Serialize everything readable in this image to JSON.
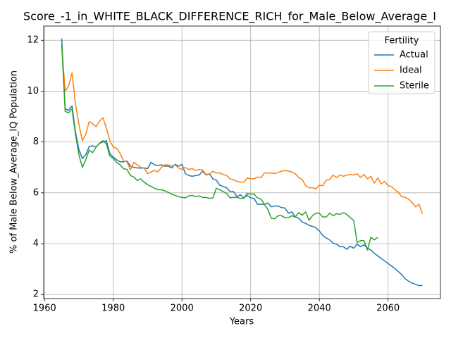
{
  "chart_data": {
    "type": "line",
    "title": "Score_-1_in_WHITE_BLACK_DIFFERENCE_RICH_for_Male_Below_Average_I",
    "xlabel": "Years",
    "ylabel": "% of Male Below_Average_IQ Population",
    "x": [
      1965,
      1966,
      1967,
      1968,
      1969,
      1970,
      1971,
      1972,
      1973,
      1974,
      1975,
      1976,
      1977,
      1978,
      1979,
      1980,
      1981,
      1982,
      1983,
      1984,
      1985,
      1986,
      1987,
      1988,
      1989,
      1990,
      1991,
      1992,
      1993,
      1994,
      1995,
      1996,
      1997,
      1998,
      1999,
      2000,
      2001,
      2002,
      2003,
      2004,
      2005,
      2006,
      2007,
      2008,
      2009,
      2010,
      2011,
      2012,
      2013,
      2014,
      2015,
      2016,
      2017,
      2018,
      2019,
      2020,
      2021,
      2022,
      2023,
      2024,
      2025,
      2026,
      2027,
      2028,
      2029,
      2030,
      2031,
      2032,
      2033,
      2034,
      2035,
      2036,
      2037,
      2038,
      2039,
      2040,
      2041,
      2042,
      2043,
      2044,
      2045,
      2046,
      2047,
      2048,
      2049,
      2050,
      2051,
      2052,
      2053,
      2054,
      2055,
      2056,
      2057,
      2058,
      2059,
      2060,
      2061,
      2062,
      2063,
      2064,
      2065,
      2066,
      2067,
      2068,
      2069,
      2070
    ],
    "series": [
      {
        "name": "Actual",
        "color": "#1f77b4",
        "values": [
          12.07,
          9.3,
          9.25,
          9.42,
          8.4,
          7.7,
          7.35,
          7.5,
          7.82,
          7.85,
          7.8,
          7.95,
          8.0,
          8.05,
          7.55,
          7.4,
          7.3,
          7.22,
          7.22,
          7.25,
          7.05,
          7.0,
          6.98,
          6.97,
          6.98,
          6.95,
          7.2,
          7.1,
          7.08,
          7.1,
          7.05,
          7.05,
          6.98,
          7.12,
          7.05,
          7.12,
          6.75,
          6.68,
          6.65,
          6.68,
          6.7,
          6.85,
          6.7,
          6.75,
          6.55,
          6.5,
          6.3,
          6.25,
          6.2,
          6.05,
          6.05,
          5.85,
          5.92,
          5.8,
          5.9,
          5.8,
          5.78,
          5.55,
          5.55,
          5.55,
          5.6,
          5.45,
          5.48,
          5.48,
          5.42,
          5.4,
          5.2,
          5.25,
          5.05,
          5.0,
          4.85,
          4.8,
          4.72,
          4.68,
          4.62,
          4.5,
          4.32,
          4.22,
          4.15,
          4.02,
          3.98,
          3.88,
          3.88,
          3.78,
          3.9,
          3.82,
          3.98,
          3.88,
          3.95,
          3.82,
          3.75,
          3.62,
          3.52,
          3.42,
          3.32,
          3.22,
          3.12,
          3.02,
          2.9,
          2.78,
          2.62,
          2.52,
          2.45,
          2.4,
          2.35,
          2.36
        ]
      },
      {
        "name": "Ideal",
        "color": "#ff7f0e",
        "values": [
          11.8,
          10.0,
          10.2,
          10.72,
          9.5,
          8.7,
          8.05,
          8.3,
          8.8,
          8.72,
          8.6,
          8.82,
          8.95,
          8.55,
          8.05,
          7.8,
          7.75,
          7.55,
          7.25,
          7.22,
          6.9,
          7.2,
          7.1,
          7.0,
          6.98,
          6.75,
          6.82,
          6.88,
          6.82,
          7.0,
          7.1,
          7.1,
          7.05,
          7.1,
          6.98,
          6.92,
          7.0,
          6.92,
          6.95,
          6.88,
          6.92,
          6.9,
          6.72,
          6.75,
          6.85,
          6.78,
          6.78,
          6.72,
          6.68,
          6.55,
          6.52,
          6.45,
          6.42,
          6.42,
          6.58,
          6.55,
          6.55,
          6.62,
          6.6,
          6.78,
          6.78,
          6.78,
          6.76,
          6.8,
          6.85,
          6.88,
          6.85,
          6.82,
          6.75,
          6.6,
          6.52,
          6.28,
          6.2,
          6.2,
          6.15,
          6.3,
          6.28,
          6.5,
          6.52,
          6.7,
          6.6,
          6.7,
          6.65,
          6.7,
          6.72,
          6.7,
          6.75,
          6.6,
          6.72,
          6.55,
          6.65,
          6.38,
          6.58,
          6.35,
          6.45,
          6.28,
          6.25,
          6.12,
          6.02,
          5.85,
          5.82,
          5.75,
          5.62,
          5.45,
          5.55,
          5.18
        ]
      },
      {
        "name": "Sterile",
        "color": "#2ca02c",
        "values": [
          11.85,
          9.2,
          9.15,
          9.3,
          8.3,
          7.5,
          7.0,
          7.3,
          7.68,
          7.58,
          7.8,
          7.95,
          8.05,
          7.92,
          7.45,
          7.35,
          7.2,
          7.1,
          6.95,
          6.92,
          6.68,
          6.62,
          6.48,
          6.55,
          6.42,
          6.32,
          6.25,
          6.18,
          6.12,
          6.12,
          6.08,
          6.02,
          5.95,
          5.9,
          5.85,
          5.82,
          5.8,
          5.88,
          5.9,
          5.85,
          5.88,
          5.82,
          5.82,
          5.78,
          5.8,
          6.18,
          6.12,
          6.05,
          5.98,
          5.8,
          5.82,
          5.82,
          5.78,
          5.78,
          5.98,
          5.95,
          5.95,
          5.8,
          5.75,
          5.55,
          5.35,
          5.0,
          4.98,
          5.1,
          5.1,
          5.02,
          5.02,
          5.1,
          5.05,
          5.22,
          5.12,
          5.25,
          4.92,
          5.1,
          5.2,
          5.2,
          5.05,
          5.05,
          5.2,
          5.1,
          5.18,
          5.15,
          5.22,
          5.15,
          5.02,
          4.92,
          4.05,
          4.12,
          4.12,
          3.75,
          4.25,
          4.15,
          4.25,
          null,
          null,
          null,
          null,
          null,
          null,
          null,
          null,
          null,
          null,
          null,
          null,
          null
        ]
      }
    ],
    "xlim": [
      1959.75,
      2075.25
    ],
    "xticks": [
      1960,
      1980,
      2000,
      2020,
      2040,
      2060
    ],
    "ylim": [
      1.84,
      12.56
    ],
    "yticks": [
      2,
      4,
      6,
      8,
      10,
      12
    ],
    "grid": true,
    "legend": "upper right",
    "legend_title": "Fertility"
  }
}
